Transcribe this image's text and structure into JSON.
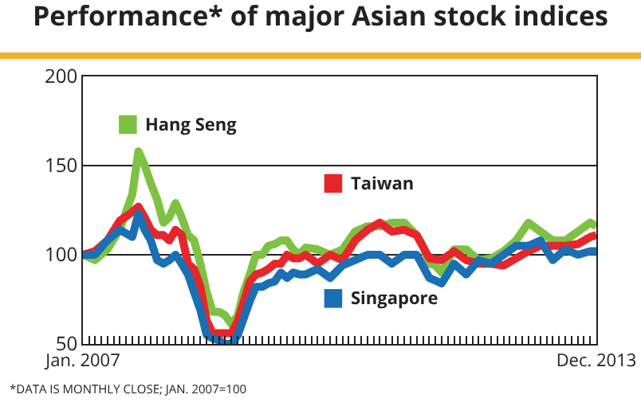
{
  "chart_data": {
    "type": "line",
    "title": "Performance* of major Asian stock indices",
    "annotations": [
      "*DATA IS MONTHLY CLOSE; JAN. 2007=100"
    ],
    "series": [
      {
        "name": "Hang Seng",
        "color": "#7dc242",
        "x": [
          "2007-01",
          "2007-03",
          "2007-05",
          "2007-07",
          "2007-09",
          "2007-10",
          "2007-11",
          "2007-12",
          "2008-01",
          "2008-02",
          "2008-03",
          "2008-04",
          "2008-05",
          "2008-06",
          "2008-07",
          "2008-08",
          "2008-09",
          "2008-10",
          "2008-11",
          "2008-12",
          "2009-01",
          "2009-02",
          "2009-03",
          "2009-04",
          "2009-05",
          "2009-06",
          "2009-07",
          "2009-08",
          "2009-09",
          "2009-10",
          "2009-11",
          "2009-12",
          "2010-01",
          "2010-03",
          "2010-05",
          "2010-07",
          "2010-09",
          "2010-11",
          "2011-01",
          "2011-03",
          "2011-05",
          "2011-07",
          "2011-08",
          "2011-09",
          "2011-10",
          "2011-11",
          "2011-12",
          "2012-01",
          "2012-03",
          "2012-05",
          "2012-07",
          "2012-09",
          "2012-11",
          "2013-01",
          "2013-03",
          "2013-05",
          "2013-07",
          "2013-09",
          "2013-11",
          "2013-12"
        ],
        "values": [
          100,
          97,
          103,
          114,
          134,
          158,
          150,
          140,
          131,
          118,
          121,
          129,
          121,
          111,
          108,
          95,
          79,
          68,
          68,
          66,
          61,
          66,
          79,
          89,
          100,
          100,
          105,
          106,
          108,
          108,
          103,
          100,
          104,
          103,
          100,
          103,
          113,
          116,
          116,
          118,
          118,
          111,
          105,
          95,
          94,
          90,
          97,
          103,
          103,
          97,
          98,
          102,
          108,
          118,
          113,
          108,
          108,
          113,
          118,
          116
        ]
      },
      {
        "name": "Taiwan",
        "color": "#e8252a",
        "x": [
          "2007-01",
          "2007-03",
          "2007-05",
          "2007-07",
          "2007-09",
          "2007-10",
          "2007-11",
          "2007-12",
          "2008-01",
          "2008-02",
          "2008-03",
          "2008-04",
          "2008-05",
          "2008-06",
          "2008-07",
          "2008-08",
          "2008-09",
          "2008-10",
          "2008-11",
          "2008-12",
          "2009-01",
          "2009-02",
          "2009-03",
          "2009-04",
          "2009-05",
          "2009-06",
          "2009-07",
          "2009-08",
          "2009-09",
          "2009-10",
          "2009-11",
          "2009-12",
          "2010-01",
          "2010-03",
          "2010-05",
          "2010-07",
          "2010-09",
          "2010-11",
          "2011-01",
          "2011-03",
          "2011-05",
          "2011-07",
          "2011-09",
          "2011-11",
          "2012-01",
          "2012-03",
          "2012-05",
          "2012-07",
          "2012-09",
          "2012-11",
          "2013-01",
          "2013-03",
          "2013-05",
          "2013-07",
          "2013-09",
          "2013-11",
          "2013-12"
        ],
        "values": [
          100,
          102,
          108,
          119,
          124,
          127,
          121,
          114,
          111,
          111,
          108,
          114,
          111,
          95,
          92,
          82,
          63,
          56,
          56,
          56,
          56,
          63,
          73,
          85,
          89,
          90,
          92,
          95,
          95,
          100,
          98,
          98,
          100,
          95,
          100,
          97,
          108,
          114,
          118,
          113,
          114,
          111,
          98,
          97,
          102,
          97,
          95,
          95,
          94,
          98,
          102,
          105,
          105,
          105,
          106,
          110,
          111
        ]
      },
      {
        "name": "Singapore",
        "color": "#1a6fb5",
        "x": [
          "2007-01",
          "2007-03",
          "2007-05",
          "2007-07",
          "2007-09",
          "2007-10",
          "2007-11",
          "2007-12",
          "2008-01",
          "2008-02",
          "2008-03",
          "2008-04",
          "2008-05",
          "2008-06",
          "2008-07",
          "2008-08",
          "2008-09",
          "2008-10",
          "2008-11",
          "2008-12",
          "2009-01",
          "2009-02",
          "2009-03",
          "2009-04",
          "2009-05",
          "2009-06",
          "2009-07",
          "2009-08",
          "2009-09",
          "2009-10",
          "2009-11",
          "2009-12",
          "2010-01",
          "2010-03",
          "2010-05",
          "2010-07",
          "2010-09",
          "2010-11",
          "2011-01",
          "2011-03",
          "2011-05",
          "2011-07",
          "2011-09",
          "2011-11",
          "2012-01",
          "2012-03",
          "2012-05",
          "2012-07",
          "2012-09",
          "2012-11",
          "2013-01",
          "2013-03",
          "2013-05",
          "2013-07",
          "2013-09",
          "2013-11",
          "2013-12"
        ],
        "values": [
          100,
          100,
          108,
          114,
          110,
          123,
          114,
          108,
          97,
          95,
          97,
          100,
          95,
          89,
          79,
          69,
          55,
          53,
          52,
          50,
          50,
          55,
          64,
          74,
          82,
          82,
          84,
          85,
          90,
          87,
          90,
          89,
          89,
          92,
          87,
          94,
          97,
          100,
          100,
          95,
          100,
          100,
          87,
          84,
          95,
          89,
          97,
          95,
          100,
          105,
          105,
          108,
          97,
          103,
          100,
          102,
          102
        ]
      }
    ],
    "xlim": [
      "2007-01",
      "2013-12"
    ],
    "xticks": [
      {
        "value": "2007-01",
        "label": "Jan. 2007"
      },
      {
        "value": "2007-02",
        "label": null
      },
      {
        "value": "2007-03",
        "label": null
      },
      {
        "value": "2007-04",
        "label": null
      },
      {
        "value": "2007-05",
        "label": null
      },
      {
        "value": "2007-06",
        "label": null
      },
      {
        "value": "2007-07",
        "label": null
      },
      {
        "value": "2007-08",
        "label": null
      },
      {
        "value": "2007-09",
        "label": null
      },
      {
        "value": "2007-10",
        "label": null
      },
      {
        "value": "2007-11",
        "label": null
      },
      {
        "value": "2007-12",
        "label": null
      },
      {
        "value": "2008-01",
        "label": null
      },
      {
        "value": "2008-02",
        "label": null
      },
      {
        "value": "2008-03",
        "label": null
      },
      {
        "value": "2008-04",
        "label": null
      },
      {
        "value": "2008-05",
        "label": null
      },
      {
        "value": "2008-06",
        "label": null
      },
      {
        "value": "2008-07",
        "label": null
      },
      {
        "value": "2008-08",
        "label": null
      },
      {
        "value": "2008-09",
        "label": null
      },
      {
        "value": "2008-10",
        "label": null
      },
      {
        "value": "2008-11",
        "label": null
      },
      {
        "value": "2008-12",
        "label": null
      },
      {
        "value": "2009-01",
        "label": null
      },
      {
        "value": "2009-02",
        "label": null
      },
      {
        "value": "2009-03",
        "label": null
      },
      {
        "value": "2009-04",
        "label": null
      },
      {
        "value": "2009-05",
        "label": null
      },
      {
        "value": "2009-06",
        "label": null
      },
      {
        "value": "2009-07",
        "label": null
      },
      {
        "value": "2009-08",
        "label": null
      },
      {
        "value": "2009-09",
        "label": null
      },
      {
        "value": "2009-10",
        "label": null
      },
      {
        "value": "2009-11",
        "label": null
      },
      {
        "value": "2009-12",
        "label": null
      },
      {
        "value": "2010-01",
        "label": null
      },
      {
        "value": "2010-02",
        "label": null
      },
      {
        "value": "2010-03",
        "label": null
      },
      {
        "value": "2010-04",
        "label": null
      },
      {
        "value": "2010-05",
        "label": null
      },
      {
        "value": "2010-06",
        "label": null
      },
      {
        "value": "2010-07",
        "label": null
      },
      {
        "value": "2010-08",
        "label": null
      },
      {
        "value": "2010-09",
        "label": null
      },
      {
        "value": "2010-10",
        "label": null
      },
      {
        "value": "2010-11",
        "label": null
      },
      {
        "value": "2010-12",
        "label": null
      },
      {
        "value": "2011-01",
        "label": null
      },
      {
        "value": "2011-02",
        "label": null
      },
      {
        "value": "2011-03",
        "label": null
      },
      {
        "value": "2011-04",
        "label": null
      },
      {
        "value": "2011-05",
        "label": null
      },
      {
        "value": "2011-06",
        "label": null
      },
      {
        "value": "2011-07",
        "label": null
      },
      {
        "value": "2011-08",
        "label": null
      },
      {
        "value": "2011-09",
        "label": null
      },
      {
        "value": "2011-10",
        "label": null
      },
      {
        "value": "2011-11",
        "label": null
      },
      {
        "value": "2011-12",
        "label": null
      },
      {
        "value": "2012-01",
        "label": null
      },
      {
        "value": "2012-02",
        "label": null
      },
      {
        "value": "2012-03",
        "label": null
      },
      {
        "value": "2012-04",
        "label": null
      },
      {
        "value": "2012-05",
        "label": null
      },
      {
        "value": "2012-06",
        "label": null
      },
      {
        "value": "2012-07",
        "label": null
      },
      {
        "value": "2012-08",
        "label": null
      },
      {
        "value": "2012-09",
        "label": null
      },
      {
        "value": "2012-10",
        "label": null
      },
      {
        "value": "2012-11",
        "label": null
      },
      {
        "value": "2012-12",
        "label": null
      },
      {
        "value": "2013-01",
        "label": null
      },
      {
        "value": "2013-02",
        "label": null
      },
      {
        "value": "2013-03",
        "label": null
      },
      {
        "value": "2013-04",
        "label": null
      },
      {
        "value": "2013-05",
        "label": null
      },
      {
        "value": "2013-06",
        "label": null
      },
      {
        "value": "2013-07",
        "label": null
      },
      {
        "value": "2013-08",
        "label": null
      },
      {
        "value": "2013-09",
        "label": null
      },
      {
        "value": "2013-10",
        "label": null
      },
      {
        "value": "2013-11",
        "label": null
      },
      {
        "value": "2013-12",
        "label": "Dec. 2013"
      }
    ],
    "ylim": [
      50,
      200
    ],
    "yticks": [
      50,
      100,
      150,
      200
    ],
    "grid": "y",
    "legend": "left",
    "marker": "none",
    "line_style": "solid"
  }
}
